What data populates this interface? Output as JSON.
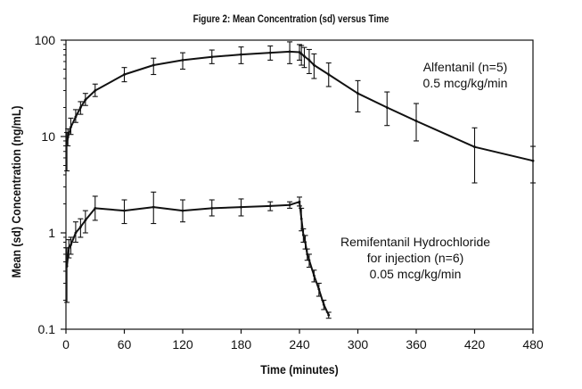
{
  "chart_data": {
    "type": "line",
    "title": "Figure 2: Mean Concentration (sd) versus Time",
    "xlabel": "Time (minutes)",
    "ylabel": "Mean (sd) Concentration (ng/mL)",
    "xlim": [
      0,
      480
    ],
    "ylim": [
      0.1,
      100
    ],
    "yscale": "log",
    "grid": false,
    "xticks": [
      0,
      60,
      120,
      180,
      240,
      300,
      360,
      420,
      480
    ],
    "yticks": [
      0.1,
      1,
      10,
      100
    ],
    "ytick_labels": [
      "0.1",
      "1",
      "10",
      "100"
    ],
    "series": [
      {
        "name": "Alfentanil (n=5) 0.5 mcg/kg/min",
        "points": [
          {
            "x": 1,
            "y": 8.5,
            "lo": 4.4,
            "hi": 11
          },
          {
            "x": 2,
            "y": 9.8,
            "lo": 8,
            "hi": 12
          },
          {
            "x": 5,
            "y": 12.5,
            "lo": 10.5,
            "hi": 15.5
          },
          {
            "x": 10,
            "y": 16,
            "lo": 14,
            "hi": 19
          },
          {
            "x": 15,
            "y": 20,
            "lo": 17,
            "hi": 23
          },
          {
            "x": 20,
            "y": 24,
            "lo": 21,
            "hi": 28
          },
          {
            "x": 30,
            "y": 30,
            "lo": 26,
            "hi": 35
          },
          {
            "x": 60,
            "y": 44,
            "lo": 37,
            "hi": 52
          },
          {
            "x": 90,
            "y": 55,
            "lo": 44,
            "hi": 65
          },
          {
            "x": 120,
            "y": 62,
            "lo": 50,
            "hi": 74
          },
          {
            "x": 150,
            "y": 67,
            "lo": 57,
            "hi": 79
          },
          {
            "x": 180,
            "y": 71,
            "lo": 57,
            "hi": 85
          },
          {
            "x": 210,
            "y": 74,
            "lo": 62,
            "hi": 87
          },
          {
            "x": 230,
            "y": 76,
            "lo": 57,
            "hi": 96
          },
          {
            "x": 240,
            "y": 75,
            "lo": 62,
            "hi": 90
          },
          {
            "x": 242,
            "y": 72,
            "lo": 55,
            "hi": 88
          },
          {
            "x": 245,
            "y": 68,
            "lo": 52,
            "hi": 84
          },
          {
            "x": 250,
            "y": 62,
            "lo": 45,
            "hi": 80
          },
          {
            "x": 255,
            "y": 55,
            "lo": 40,
            "hi": 72
          },
          {
            "x": 270,
            "y": 44,
            "lo": 33,
            "hi": 58
          },
          {
            "x": 300,
            "y": 28,
            "lo": 18,
            "hi": 38
          },
          {
            "x": 330,
            "y": 20,
            "lo": 13,
            "hi": 29
          },
          {
            "x": 360,
            "y": 14.5,
            "lo": 9,
            "hi": 22
          },
          {
            "x": 420,
            "y": 7.8,
            "lo": 3.3,
            "hi": 12.3
          },
          {
            "x": 480,
            "y": 5.6,
            "lo": 3.3,
            "hi": 7.9
          }
        ]
      },
      {
        "name": "Remifentanil Hydrochloride for injection (n=6) 0.05 mcg/kg/min",
        "points": [
          {
            "x": 1,
            "y": 0.45,
            "lo": 0.19,
            "hi": 0.7
          },
          {
            "x": 3,
            "y": 0.7,
            "lo": 0.55,
            "hi": 0.85
          },
          {
            "x": 5,
            "y": 0.75,
            "lo": 0.6,
            "hi": 0.9
          },
          {
            "x": 10,
            "y": 1.0,
            "lo": 0.8,
            "hi": 1.3
          },
          {
            "x": 15,
            "y": 1.15,
            "lo": 0.9,
            "hi": 1.4
          },
          {
            "x": 20,
            "y": 1.35,
            "lo": 1.0,
            "hi": 1.7
          },
          {
            "x": 30,
            "y": 1.8,
            "lo": 1.35,
            "hi": 2.4
          },
          {
            "x": 60,
            "y": 1.7,
            "lo": 1.25,
            "hi": 2.2
          },
          {
            "x": 90,
            "y": 1.85,
            "lo": 1.25,
            "hi": 2.65
          },
          {
            "x": 120,
            "y": 1.7,
            "lo": 1.3,
            "hi": 2.2
          },
          {
            "x": 150,
            "y": 1.8,
            "lo": 1.5,
            "hi": 2.2
          },
          {
            "x": 180,
            "y": 1.85,
            "lo": 1.5,
            "hi": 2.25
          },
          {
            "x": 210,
            "y": 1.9,
            "lo": 1.7,
            "hi": 2.1
          },
          {
            "x": 230,
            "y": 1.95,
            "lo": 1.8,
            "hi": 2.1
          },
          {
            "x": 240,
            "y": 2.1,
            "lo": 1.9,
            "hi": 2.35
          },
          {
            "x": 242,
            "y": 1.4,
            "lo": 1.05,
            "hi": 1.8
          },
          {
            "x": 244,
            "y": 0.95,
            "lo": 0.8,
            "hi": 1.1
          },
          {
            "x": 246,
            "y": 0.8,
            "lo": 0.68,
            "hi": 0.94
          },
          {
            "x": 248,
            "y": 0.6,
            "lo": 0.52,
            "hi": 0.68
          },
          {
            "x": 250,
            "y": 0.52,
            "lo": 0.44,
            "hi": 0.6
          },
          {
            "x": 255,
            "y": 0.36,
            "lo": 0.31,
            "hi": 0.41
          },
          {
            "x": 260,
            "y": 0.26,
            "lo": 0.22,
            "hi": 0.3
          },
          {
            "x": 265,
            "y": 0.18,
            "lo": 0.16,
            "hi": 0.2
          },
          {
            "x": 270,
            "y": 0.14,
            "lo": 0.13,
            "hi": 0.15
          }
        ]
      }
    ],
    "annotations": {
      "alfentanil": [
        "Alfentanil (n=5)",
        "0.5 mcg/kg/min"
      ],
      "remifentanil": [
        "Remifentanil Hydrochloride",
        "for injection (n=6)",
        "0.05 mcg/kg/min"
      ]
    },
    "colors": {
      "line": "#111111",
      "axis": "#111111",
      "background": "#ffffff"
    }
  }
}
